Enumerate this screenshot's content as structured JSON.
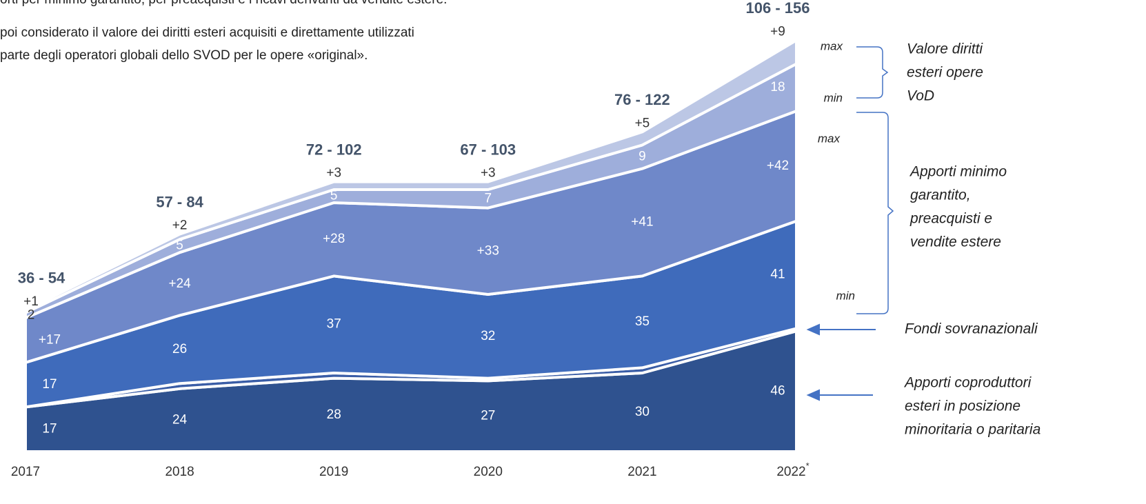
{
  "chart_data": {
    "type": "stacked-area",
    "intro": [
      "orti per minimo garantito, per preacquisti e i ricavi derivanti da vendite estere.",
      "poi considerato il valore dei diritti esteri acquisiti e direttamente utilizzati",
      "parte degli operatori globali dello SVOD per le opere «original»."
    ],
    "categories": [
      "2017",
      "2018",
      "2019",
      "2020",
      "2021",
      "2022"
    ],
    "category_note": "*",
    "totals": [
      "36 - 54",
      "57 - 84",
      "72 - 102",
      "67 - 103",
      "76 - 122",
      "106 - 156"
    ],
    "ylim": [
      0,
      160
    ],
    "series": [
      {
        "color": "#2f528f",
        "values": [
          17,
          24,
          28,
          27,
          30,
          46
        ]
      },
      {
        "color": "#3a5da6",
        "values": [
          0,
          2,
          2,
          1,
          2,
          1
        ]
      },
      {
        "color": "#3f6bbb",
        "values": [
          17,
          26,
          37,
          32,
          35,
          41
        ]
      },
      {
        "color": "#6f88c9",
        "values": [
          17,
          24,
          28,
          33,
          41,
          42
        ],
        "value_labels": [
          "+17",
          "+24",
          "+28",
          "+33",
          "+41",
          "+42"
        ]
      },
      {
        "color": "#9eaedb",
        "values": [
          2,
          5,
          5,
          7,
          9,
          18
        ]
      },
      {
        "color": "#bcc7e5",
        "values": [
          1,
          2,
          3,
          3,
          5,
          9
        ],
        "value_labels": [
          "+1",
          "+2",
          "+3",
          "+3",
          "+5",
          "+9"
        ]
      }
    ],
    "annotations": [
      {
        "lines": [
          "Valore diritti",
          "esteri opere",
          "VoD"
        ],
        "max": "max",
        "min": "min"
      },
      {
        "lines": [
          "Apporti minimo",
          "garantito,",
          "preacquisti e",
          "vendite estere"
        ],
        "max": "max",
        "min": "min"
      },
      {
        "lines": [
          "Fondi sovranazionali"
        ]
      },
      {
        "lines": [
          "Apporti coproduttori",
          "esteri in posizione",
          "minoritaria o paritaria"
        ]
      }
    ]
  }
}
